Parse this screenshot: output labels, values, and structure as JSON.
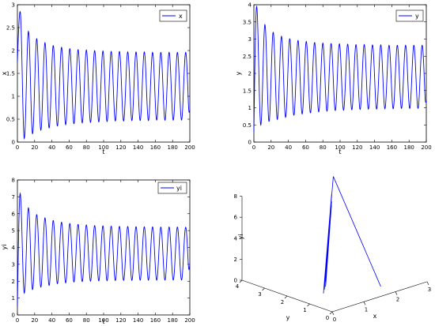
{
  "chart_data": [
    {
      "type": "line",
      "xlabel": "t",
      "ylabel": "x",
      "xlim": [
        0,
        200
      ],
      "ylim": [
        0,
        3
      ],
      "xticks": [
        "0",
        "20",
        "40",
        "60",
        "80",
        "100",
        "120",
        "140",
        "160",
        "180",
        "200"
      ],
      "yticks": [
        "0",
        "0.5",
        "1",
        "1.5",
        "2",
        "2.5",
        "3"
      ],
      "series": [
        {
          "name": "x",
          "color": "#0000ff",
          "peaks": [
            2.85,
            2.42,
            2.26,
            2.17,
            2.11,
            2.07,
            2.04,
            2.02,
            2.01,
            2.0,
            1.99,
            1.98,
            1.98,
            1.97,
            1.97,
            1.97,
            1.96,
            1.96,
            1.96,
            1.96,
            1.96
          ],
          "troughs": [
            0.08,
            0.18,
            0.26,
            0.31,
            0.35,
            0.38,
            0.4,
            0.42,
            0.43,
            0.44,
            0.45,
            0.46,
            0.46,
            0.47,
            0.47,
            0.47,
            0.48,
            0.48,
            0.48,
            0.48,
            0.48
          ],
          "start": 1.75,
          "end": 0.7,
          "period": 9.6
        }
      ],
      "legend": "top-right",
      "grid": false
    },
    {
      "type": "line",
      "xlabel": "t",
      "ylabel": "y",
      "xlim": [
        0,
        200
      ],
      "ylim": [
        0,
        4
      ],
      "xticks": [
        "0",
        "20",
        "40",
        "60",
        "80",
        "100",
        "120",
        "140",
        "160",
        "180",
        "200"
      ],
      "yticks": [
        "0",
        "0.5",
        "1",
        "1.5",
        "2",
        "2.5",
        "3",
        "3.5",
        "4"
      ],
      "series": [
        {
          "name": "y",
          "color": "#0000ff",
          "peaks": [
            3.95,
            3.42,
            3.2,
            3.08,
            3.01,
            2.96,
            2.93,
            2.9,
            2.88,
            2.87,
            2.86,
            2.85,
            2.84,
            2.84,
            2.83,
            2.83,
            2.82,
            2.82,
            2.82,
            2.82,
            2.82
          ],
          "troughs": [
            0.5,
            0.6,
            0.66,
            0.72,
            0.78,
            0.82,
            0.85,
            0.88,
            0.9,
            0.92,
            0.93,
            0.94,
            0.95,
            0.96,
            0.96,
            0.97,
            0.97,
            0.98,
            0.98,
            0.98,
            0.98
          ],
          "start": 0.3,
          "end": 1.2,
          "period": 9.6
        }
      ],
      "legend": "top-right",
      "grid": false
    },
    {
      "type": "line",
      "xlabel": "t",
      "ylabel": "yi",
      "xlim": [
        0,
        200
      ],
      "ylim": [
        0,
        8
      ],
      "xticks": [
        "0",
        "20",
        "40",
        "60",
        "80",
        "100",
        "120",
        "140",
        "160",
        "180",
        "200"
      ],
      "yticks": [
        "0",
        "1",
        "2",
        "3",
        "4",
        "5",
        "6",
        "7",
        "8"
      ],
      "series": [
        {
          "name": "yi",
          "color": "#0000ff",
          "peaks": [
            7.2,
            6.35,
            5.95,
            5.75,
            5.6,
            5.5,
            5.42,
            5.37,
            5.33,
            5.3,
            5.28,
            5.26,
            5.25,
            5.24,
            5.23,
            5.22,
            5.22,
            5.21,
            5.21,
            5.21,
            5.2
          ],
          "troughs": [
            1.3,
            1.5,
            1.65,
            1.75,
            1.85,
            1.9,
            1.95,
            1.98,
            2.0,
            2.02,
            2.03,
            2.04,
            2.05,
            2.05,
            2.06,
            2.06,
            2.06,
            2.07,
            2.07,
            2.07,
            2.07
          ],
          "start": 0.5,
          "end": 3.0,
          "period": 9.6
        }
      ],
      "legend": "top-right",
      "grid": false
    },
    {
      "type": "line",
      "subtype": "3d-phase-portrait",
      "xlabel": "x",
      "ylabel": "y",
      "zlabel": "yi",
      "xlim": [
        0,
        3
      ],
      "ylim": [
        0,
        4
      ],
      "zlim": [
        0,
        8
      ],
      "xticks": [
        "0",
        "1",
        "2",
        "3"
      ],
      "yticks": [
        "0",
        "1",
        "2",
        "3",
        "4"
      ],
      "zticks": [
        "0",
        "2",
        "4",
        "6",
        "8"
      ],
      "limit_cycle": {
        "x_range": [
          0.48,
          1.96
        ],
        "y_range": [
          0.98,
          2.82
        ],
        "z_range": [
          2.07,
          5.2
        ]
      },
      "transient_start": {
        "x": 1.75,
        "y": 0.3,
        "z": 0.5
      },
      "series": [
        {
          "color": "#0000ff"
        }
      ],
      "grid": false
    }
  ]
}
